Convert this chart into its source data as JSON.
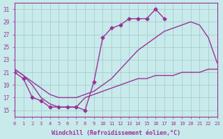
{
  "bg_color": "#c8eaea",
  "line_color": "#993399",
  "grid_color": "#a0c8c8",
  "xlabel": "Windchill (Refroidissement éolien,°C)",
  "xlim_min": 0,
  "xlim_max": 23,
  "ylim_min": 14,
  "ylim_max": 32,
  "xticks": [
    0,
    1,
    2,
    3,
    4,
    5,
    6,
    7,
    8,
    9,
    10,
    11,
    12,
    13,
    14,
    15,
    16,
    17,
    18,
    19,
    20,
    21,
    22,
    23
  ],
  "yticks": [
    15,
    17,
    19,
    21,
    23,
    25,
    27,
    29,
    31
  ],
  "font_color": "#993399",
  "series": [
    {
      "x": [
        0,
        1,
        2,
        3,
        4,
        5,
        6,
        7,
        8,
        9,
        10,
        11,
        12,
        13,
        14,
        15,
        16,
        17
      ],
      "y": [
        21.0,
        20.0,
        17.0,
        16.5,
        15.5,
        15.5,
        15.5,
        15.5,
        15.0,
        19.5,
        26.5,
        28.0,
        28.5,
        29.5,
        29.5,
        29.5,
        31.0,
        29.5
      ],
      "marker": "D",
      "markersize": 2.5,
      "linewidth": 1.0
    },
    {
      "x": [
        0,
        1,
        2,
        3,
        4,
        5,
        6,
        7,
        8,
        9,
        10,
        11,
        12,
        13,
        14,
        15,
        16,
        17,
        18,
        19,
        20,
        21,
        22,
        23
      ],
      "y": [
        21.5,
        20.5,
        19.5,
        18.5,
        17.5,
        17.0,
        17.0,
        17.0,
        17.5,
        18.0,
        19.0,
        20.0,
        21.5,
        23.0,
        24.5,
        25.5,
        26.5,
        27.5,
        28.0,
        28.5,
        29.0,
        28.5,
        26.5,
        22.5
      ],
      "marker": null,
      "linewidth": 1.0
    },
    {
      "x": [
        0,
        1,
        2,
        3,
        4,
        5,
        6,
        7,
        8,
        9,
        10,
        11,
        12,
        13,
        14,
        15,
        16,
        17,
        18,
        19,
        20,
        21,
        22,
        23
      ],
      "y": [
        21.5,
        20.5,
        19.0,
        17.0,
        16.0,
        15.5,
        15.5,
        15.5,
        17.0,
        17.5,
        18.0,
        18.5,
        19.0,
        19.5,
        20.0,
        20.0,
        20.5,
        20.5,
        20.5,
        21.0,
        21.0,
        21.0,
        21.5,
        21.5
      ],
      "marker": null,
      "linewidth": 1.0
    }
  ]
}
